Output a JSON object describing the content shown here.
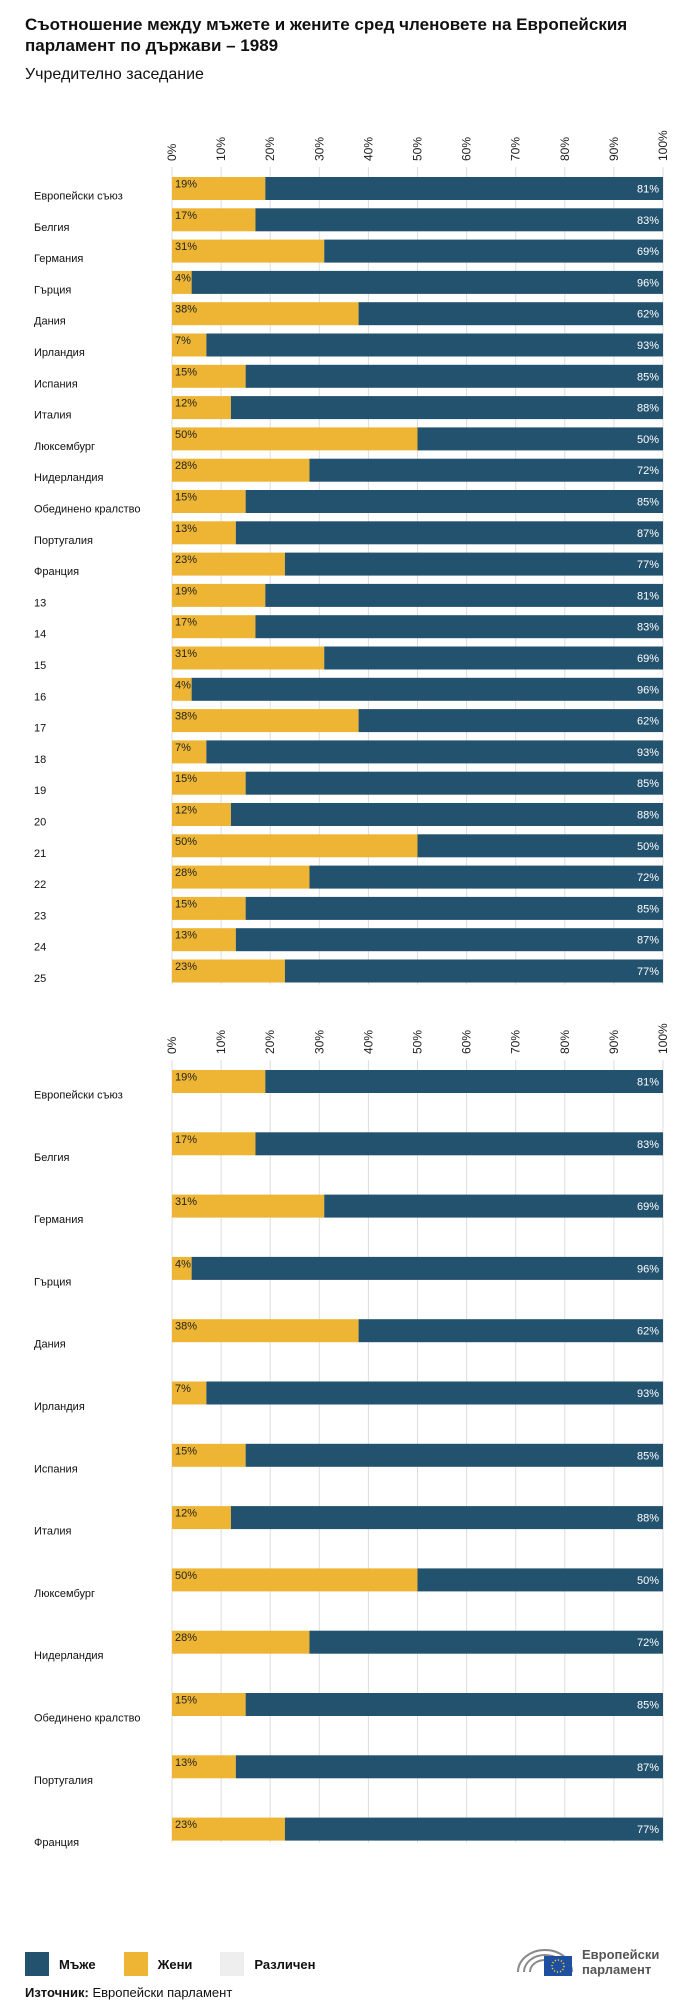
{
  "title": "Съотношение между мъжете и жените сред членовете на Европейския парламент по държави – 1989",
  "subtitle": "Учредително заседание",
  "colors": {
    "men": "#23526f",
    "women": "#edb533",
    "other": "#eeeeee"
  },
  "legend": {
    "men": "Мъже",
    "women": "Жени",
    "other": "Различен"
  },
  "source": {
    "label": "Източник:",
    "text": "Европейски парламент"
  },
  "logo": {
    "line1": "Европейски",
    "line2": "парламент",
    "icon": "eu-parliament-logo-icon"
  },
  "chart_data": [
    {
      "type": "bar",
      "orientation": "horizontal",
      "stacked": true,
      "xlim": [
        0,
        100
      ],
      "ticks": [
        "0%",
        "10%",
        "20%",
        "30%",
        "40%",
        "50%",
        "60%",
        "70%",
        "80%",
        "90%",
        "100%"
      ],
      "categories": [
        "Европейски съюз",
        "Белгия",
        "Германия",
        "Гърция",
        "Дания",
        "Ирландия",
        "Испания",
        "Италия",
        "Люксембург",
        "Нидерландия",
        "Обединено кралство",
        "Португалия",
        "Франция",
        "13",
        "14",
        "15",
        "16",
        "17",
        "18",
        "19",
        "20",
        "21",
        "22",
        "23",
        "24",
        "25"
      ],
      "series": [
        {
          "name": "Жени",
          "values": [
            19,
            17,
            31,
            4,
            38,
            7,
            15,
            12,
            50,
            28,
            15,
            13,
            23,
            19,
            17,
            31,
            4,
            38,
            7,
            15,
            12,
            50,
            28,
            15,
            13,
            23
          ]
        },
        {
          "name": "Мъже",
          "values": [
            81,
            83,
            69,
            96,
            62,
            93,
            85,
            88,
            50,
            72,
            85,
            87,
            77,
            81,
            83,
            69,
            96,
            62,
            93,
            85,
            88,
            50,
            72,
            85,
            87,
            77
          ]
        }
      ]
    },
    {
      "type": "bar",
      "orientation": "horizontal",
      "stacked": true,
      "xlim": [
        0,
        100
      ],
      "ticks": [
        "0%",
        "10%",
        "20%",
        "30%",
        "40%",
        "50%",
        "60%",
        "70%",
        "80%",
        "90%",
        "100%"
      ],
      "categories": [
        "Европейски съюз",
        "Белгия",
        "Германия",
        "Гърция",
        "Дания",
        "Ирландия",
        "Испания",
        "Италия",
        "Люксембург",
        "Нидерландия",
        "Обединено кралство",
        "Португалия",
        "Франция"
      ],
      "series": [
        {
          "name": "Жени",
          "values": [
            19,
            17,
            31,
            4,
            38,
            7,
            15,
            12,
            50,
            28,
            15,
            13,
            23
          ]
        },
        {
          "name": "Мъже",
          "values": [
            81,
            83,
            69,
            96,
            62,
            93,
            85,
            88,
            50,
            72,
            85,
            87,
            77
          ]
        }
      ]
    }
  ]
}
